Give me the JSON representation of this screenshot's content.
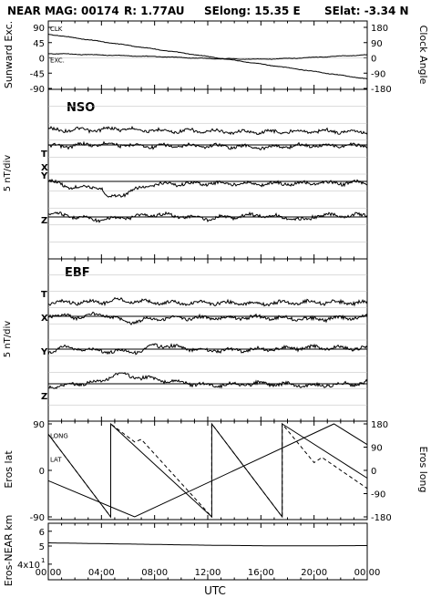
{
  "header": {
    "left": "NEAR MAG: 00174",
    "mid": "R: 1.77AU",
    "selong": "SElong:   15.35 E",
    "selat": "SElat:   -3.34 N"
  },
  "xaxis": {
    "label": "UTC",
    "ticks": [
      "00:00",
      "04:00",
      "08:00",
      "12:00",
      "16:00",
      "20:00",
      "00:00"
    ],
    "range_hours": [
      0,
      24
    ]
  },
  "chart_data": [
    {
      "id": "panel1",
      "type": "line",
      "ylabel_left": "Sunward Exc.",
      "ylabel_right": "Clock Angle",
      "yticks_left": [
        "90",
        "45",
        "0",
        "-45",
        "-90"
      ],
      "yticks_right": [
        "180",
        "90",
        "0",
        "-90",
        "-180"
      ],
      "ylim_left": [
        -90,
        90
      ],
      "ylim_right": [
        -180,
        180
      ],
      "series": [
        {
          "name": "CLK",
          "axis": "right",
          "x": [
            0,
            24
          ],
          "y": [
            140,
            -124
          ]
        },
        {
          "name": "EXC.",
          "axis": "left",
          "x": [
            0,
            8,
            12,
            16,
            18,
            24
          ],
          "y": [
            13,
            4,
            -2,
            -4,
            -2,
            9
          ]
        }
      ]
    },
    {
      "id": "panel2",
      "type": "line",
      "title": "NSO",
      "ylabel": "5 nT/div",
      "series": [
        {
          "name": "T",
          "x": [
            0,
            4,
            5,
            8,
            12,
            16,
            20,
            24
          ],
          "y": [
            4.5,
            4.4,
            4.9,
            4.2,
            4.0,
            3.8,
            4.1,
            3.9
          ]
        },
        {
          "name": "X",
          "x": [
            0,
            4,
            8,
            12,
            16,
            20,
            24
          ],
          "y": [
            -0.6,
            0.3,
            -0.4,
            -0.2,
            -0.7,
            -0.1,
            -0.3
          ]
        },
        {
          "name": "Y",
          "x": [
            0,
            1.5,
            4,
            4.5,
            8,
            12,
            16,
            20,
            24
          ],
          "y": [
            0.3,
            -1.6,
            -1.8,
            -5.0,
            -0.8,
            -0.6,
            -0.7,
            -0.5,
            -0.4
          ]
        },
        {
          "name": "Z",
          "x": [
            0,
            4,
            8,
            12,
            16,
            19.5,
            20,
            24
          ],
          "y": [
            1.2,
            -0.9,
            0.8,
            -0.4,
            0.6,
            -1.0,
            0.4,
            0.5
          ]
        }
      ]
    },
    {
      "id": "panel3",
      "type": "line",
      "title": "EBF",
      "ylabel": "5 nT/div",
      "series": [
        {
          "name": "T",
          "x": [
            0,
            4,
            5,
            8,
            12,
            16,
            20,
            24
          ],
          "y": [
            4.3,
            4.4,
            5.0,
            4.3,
            4.1,
            4.0,
            4.4,
            4.1
          ]
        },
        {
          "name": "X",
          "x": [
            0,
            2,
            4,
            6,
            8,
            12,
            16,
            20,
            24
          ],
          "y": [
            0.6,
            -0.3,
            0.8,
            -1.8,
            -0.6,
            -0.5,
            -0.3,
            -0.9,
            -0.2
          ]
        },
        {
          "name": "Y",
          "x": [
            0,
            1,
            4,
            7,
            8,
            12,
            16,
            20,
            24
          ],
          "y": [
            -1.0,
            0.7,
            -0.6,
            -0.7,
            1.3,
            -0.4,
            -0.1,
            0.5,
            0.3
          ]
        },
        {
          "name": "Z",
          "x": [
            0,
            4,
            5,
            8,
            12,
            16,
            20,
            24
          ],
          "y": [
            -1.0,
            0.8,
            3.0,
            1.4,
            -0.5,
            0.1,
            -0.6,
            0.3
          ]
        }
      ]
    },
    {
      "id": "panel4",
      "type": "line",
      "ylabel_left": "Eros lat",
      "ylabel_right": "Eros long",
      "yticks_left": [
        "90",
        "0",
        "-90"
      ],
      "yticks_right": [
        "180",
        "90",
        "0",
        "-90",
        "-180"
      ],
      "ylim_left": [
        -90,
        90
      ],
      "ylim_right": [
        -180,
        180
      ],
      "series": [
        {
          "name": "LONG",
          "axis": "right",
          "style": "dashed",
          "x": [
            0,
            4.7,
            4.7,
            6.5,
            7.0,
            12.3,
            12.3,
            17.6,
            17.6,
            20.0,
            20.6,
            24
          ],
          "y": [
            140,
            -180,
            180,
            110,
            120,
            -180,
            180,
            -180,
            180,
            30,
            50,
            -70
          ]
        },
        {
          "name": "LAT",
          "axis": "left",
          "style": "solid",
          "x": [
            0,
            4.7,
            4.7,
            12.3,
            12.3,
            17.6,
            17.6,
            24
          ],
          "y": [
            70,
            -90,
            90,
            -90,
            90,
            -90,
            90,
            -15
          ]
        },
        {
          "name": "",
          "axis": "left",
          "style": "solid",
          "x": [
            0,
            6.5,
            21.5,
            24
          ],
          "y": [
            -20,
            -90,
            90,
            50
          ]
        }
      ]
    },
    {
      "id": "panel5",
      "type": "line",
      "ylabel": "Eros-NEAR km",
      "ytick_labels": [
        "6",
        "5",
        "4x10",
        "1"
      ],
      "log_scale": true,
      "series": [
        {
          "name": "",
          "x": [
            0,
            4,
            8,
            12,
            16,
            20,
            24
          ],
          "y": [
            52,
            51.5,
            51,
            50.5,
            50.2,
            50.1,
            50.3
          ]
        }
      ]
    }
  ]
}
